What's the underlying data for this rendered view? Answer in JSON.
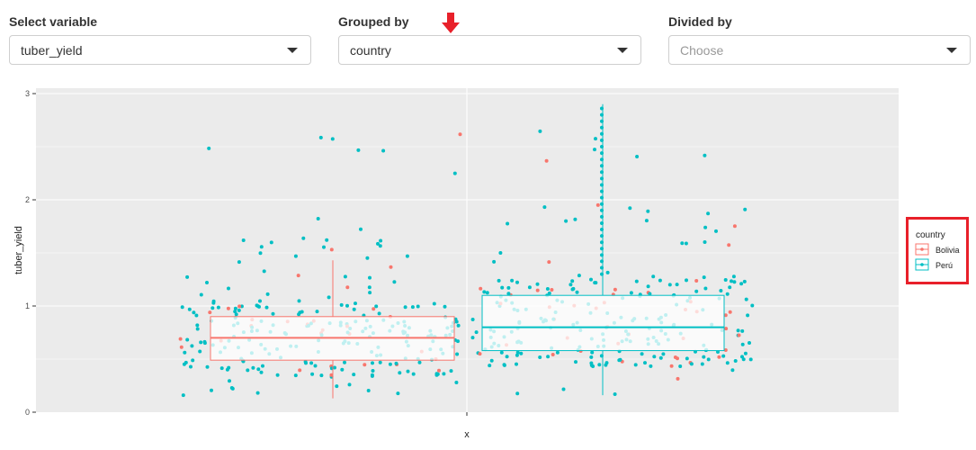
{
  "controls": {
    "variable": {
      "label": "Select variable",
      "value": "tuber_yield"
    },
    "grouped": {
      "label": "Grouped by",
      "value": "country"
    },
    "divided": {
      "label": "Divided by",
      "placeholder": "Choose"
    }
  },
  "colors": {
    "bolivia": "#F8766D",
    "peru": "#00BFC4",
    "panel": "#EBEBEB",
    "highlight": "#E8202A"
  },
  "chart_data": {
    "type": "boxplot",
    "xlabel": "x",
    "ylabel": "tuber_yield",
    "ylim": [
      0,
      3
    ],
    "yticks": [
      "0",
      "1",
      "2",
      "3"
    ],
    "grid": true,
    "legend": {
      "title": "country",
      "entries": [
        "Bolivia",
        "Perú"
      ],
      "position": "right"
    },
    "series": [
      {
        "name": "Bolivia",
        "min": 0.13,
        "q1": 0.49,
        "median": 0.7,
        "q3": 0.9,
        "max": 1.43
      },
      {
        "name": "Perú",
        "min": 0.16,
        "q1": 0.58,
        "median": 0.8,
        "q3": 1.1,
        "max": 2.9
      }
    ]
  }
}
